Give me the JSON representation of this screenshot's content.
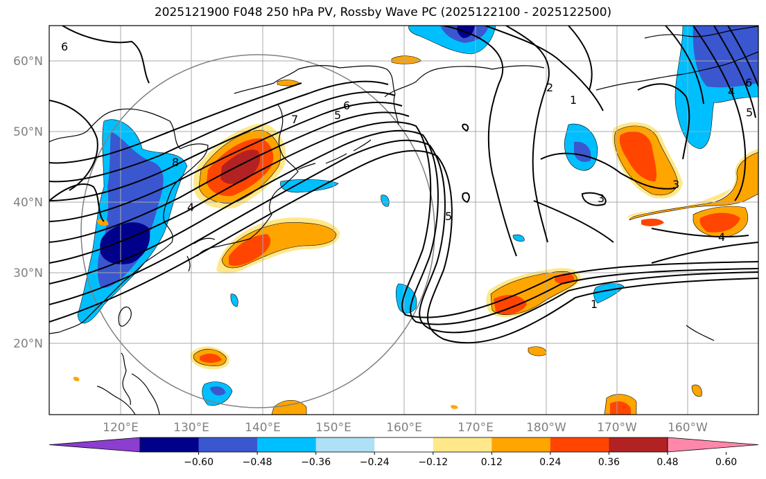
{
  "title": "2025121900 F048 250 hPa PV, Rossby Wave PC (2025122100 - 2025122500)",
  "map": {
    "lon_labels": [
      "120°E",
      "130°E",
      "140°E",
      "150°E",
      "160°E",
      "170°E",
      "180°W",
      "170°W",
      "160°W"
    ],
    "lat_labels": [
      "60°N",
      "50°N",
      "40°N",
      "30°N",
      "20°N"
    ],
    "contour_labels": [
      "6",
      "8",
      "7",
      "5",
      "6",
      "2",
      "1",
      "3",
      "4",
      "5",
      "1",
      "3",
      "6",
      "5",
      "4",
      "4"
    ]
  },
  "colorbar": {
    "ticks": [
      "−0.60",
      "−0.48",
      "−0.36",
      "−0.24",
      "−0.12",
      "0.12",
      "0.24",
      "0.36",
      "0.48",
      "0.60"
    ],
    "colors": [
      "#8b3ecf",
      "#00008b",
      "#3a57d0",
      "#00bfff",
      "#aee0f8",
      "#ffffff",
      "#ffe88a",
      "#ffa500",
      "#ff4500",
      "#b22222",
      "#ff88aa"
    ]
  }
}
